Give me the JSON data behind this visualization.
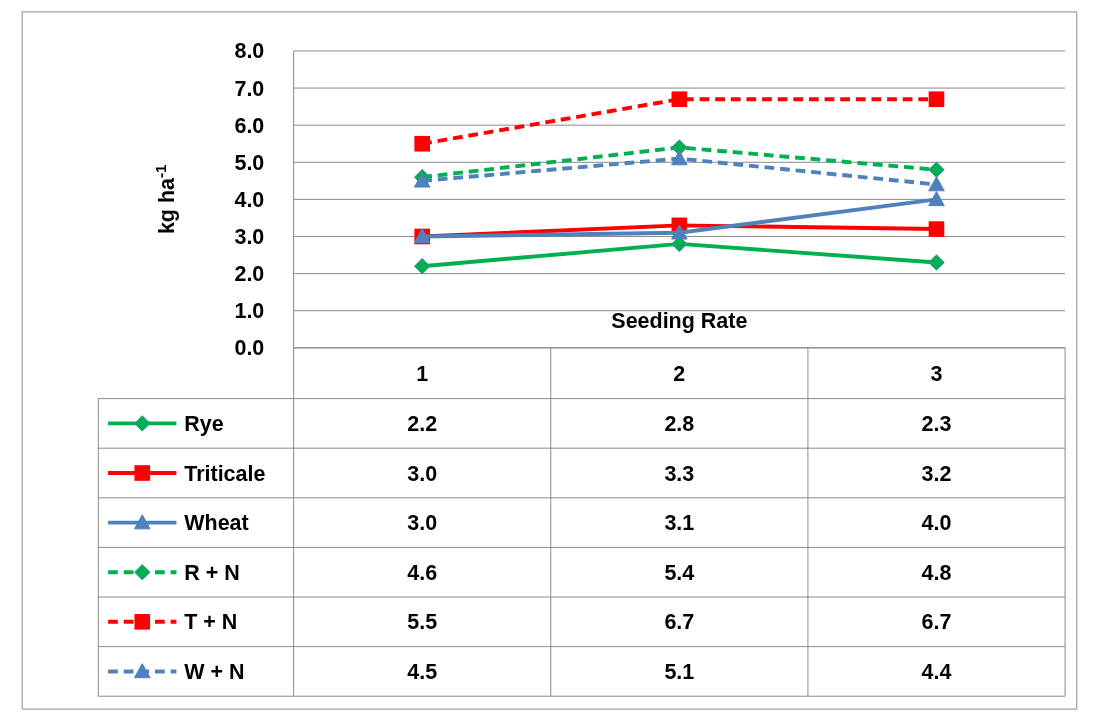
{
  "chart_data": {
    "type": "line",
    "xlabel": "Seeding Rate",
    "ylabel": "kg ha$^{-1}$",
    "categories": [
      "1",
      "2",
      "3"
    ],
    "ylim": [
      0,
      8
    ],
    "yticks": [
      {
        "value": 0,
        "label": "0.0"
      },
      {
        "value": 1,
        "label": "1.0"
      },
      {
        "value": 2,
        "label": "2.0"
      },
      {
        "value": 3,
        "label": "3.0"
      },
      {
        "value": 4,
        "label": "4.0"
      },
      {
        "value": 5,
        "label": "5.0"
      },
      {
        "value": 6,
        "label": "6.0"
      },
      {
        "value": 7,
        "label": "7.0"
      },
      {
        "value": 8,
        "label": "8.0"
      }
    ],
    "grid": "y",
    "legend": "bottom",
    "series": [
      {
        "name": "Rye",
        "color": "#00b050",
        "values": [
          2.2,
          2.8,
          2.3
        ],
        "value_labels": [
          "2.2",
          "2.8",
          "2.3"
        ],
        "marker": "diamond",
        "line_style": "solid"
      },
      {
        "name": "Triticale",
        "color": "#ff0000",
        "values": [
          3.0,
          3.3,
          3.2
        ],
        "value_labels": [
          "3.0",
          "3.3",
          "3.2"
        ],
        "marker": "square",
        "line_style": "solid"
      },
      {
        "name": "Wheat",
        "color": "#4f81bd",
        "values": [
          3.0,
          3.1,
          4.0
        ],
        "value_labels": [
          "3.0",
          "3.1",
          "4.0"
        ],
        "marker": "triangle",
        "line_style": "solid"
      },
      {
        "name": "R + N",
        "color": "#00b050",
        "values": [
          4.6,
          5.4,
          4.8
        ],
        "value_labels": [
          "4.6",
          "5.4",
          "4.8"
        ],
        "marker": "diamond",
        "line_style": "dashed"
      },
      {
        "name": "T + N",
        "color": "#ff0000",
        "values": [
          5.5,
          6.7,
          6.7
        ],
        "value_labels": [
          "5.5",
          "6.7",
          "6.7"
        ],
        "marker": "square",
        "line_style": "dashed"
      },
      {
        "name": "W + N",
        "color": "#4f81bd",
        "values": [
          4.5,
          5.1,
          4.4
        ],
        "value_labels": [
          "4.5",
          "5.1",
          "4.4"
        ],
        "marker": "triangle",
        "line_style": "dashed"
      }
    ]
  }
}
